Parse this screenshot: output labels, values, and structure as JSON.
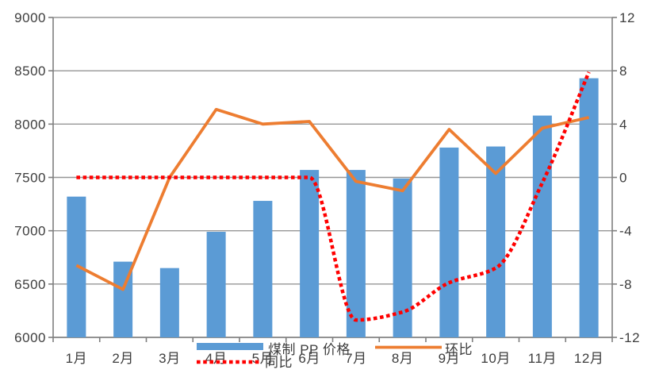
{
  "chart_data": {
    "type": "combo",
    "categories": [
      "1月",
      "2月",
      "3月",
      "4月",
      "5月",
      "6月",
      "7月",
      "8月",
      "9月",
      "10月",
      "11月",
      "12月"
    ],
    "series": [
      {
        "name": "煤制 PP 价格",
        "type": "bar",
        "axis": "left",
        "color": "#5B9BD5",
        "values": [
          7320,
          6710,
          6650,
          6990,
          7280,
          7570,
          7570,
          7490,
          7780,
          7790,
          8080,
          8430
        ]
      },
      {
        "name": "环比",
        "type": "line",
        "axis": "right",
        "color": "#ED7D31",
        "values": [
          -6.6,
          -8.4,
          0,
          5.1,
          4.0,
          4.2,
          -0.3,
          -1.0,
          3.6,
          0.3,
          3.7,
          4.5
        ]
      },
      {
        "name": "同比",
        "type": "line",
        "dashed": true,
        "smooth": true,
        "axis": "right",
        "color": "#FF0000",
        "values": [
          0,
          0,
          0,
          0,
          0,
          0,
          -10.7,
          -10.1,
          -7.9,
          -6.8,
          -0.4,
          7.9
        ]
      }
    ],
    "left_axis": {
      "min": 6000,
      "max": 9000,
      "step": 500,
      "labels": [
        "6000",
        "6500",
        "7000",
        "7500",
        "8000",
        "8500",
        "9000"
      ]
    },
    "right_axis": {
      "min": -12,
      "max": 12,
      "step": 4,
      "labels": [
        "-12",
        "-8",
        "-4",
        "0",
        "4",
        "8",
        "12"
      ]
    },
    "legend": [
      {
        "label": "煤制 PP 价格",
        "swatch": "bar",
        "color": "#5B9BD5"
      },
      {
        "label": "环比",
        "swatch": "line",
        "color": "#ED7D31"
      },
      {
        "label": "同比",
        "swatch": "dashed-line",
        "color": "#FF0000"
      }
    ],
    "grid": true,
    "legend_position": "bottom-overlap"
  }
}
